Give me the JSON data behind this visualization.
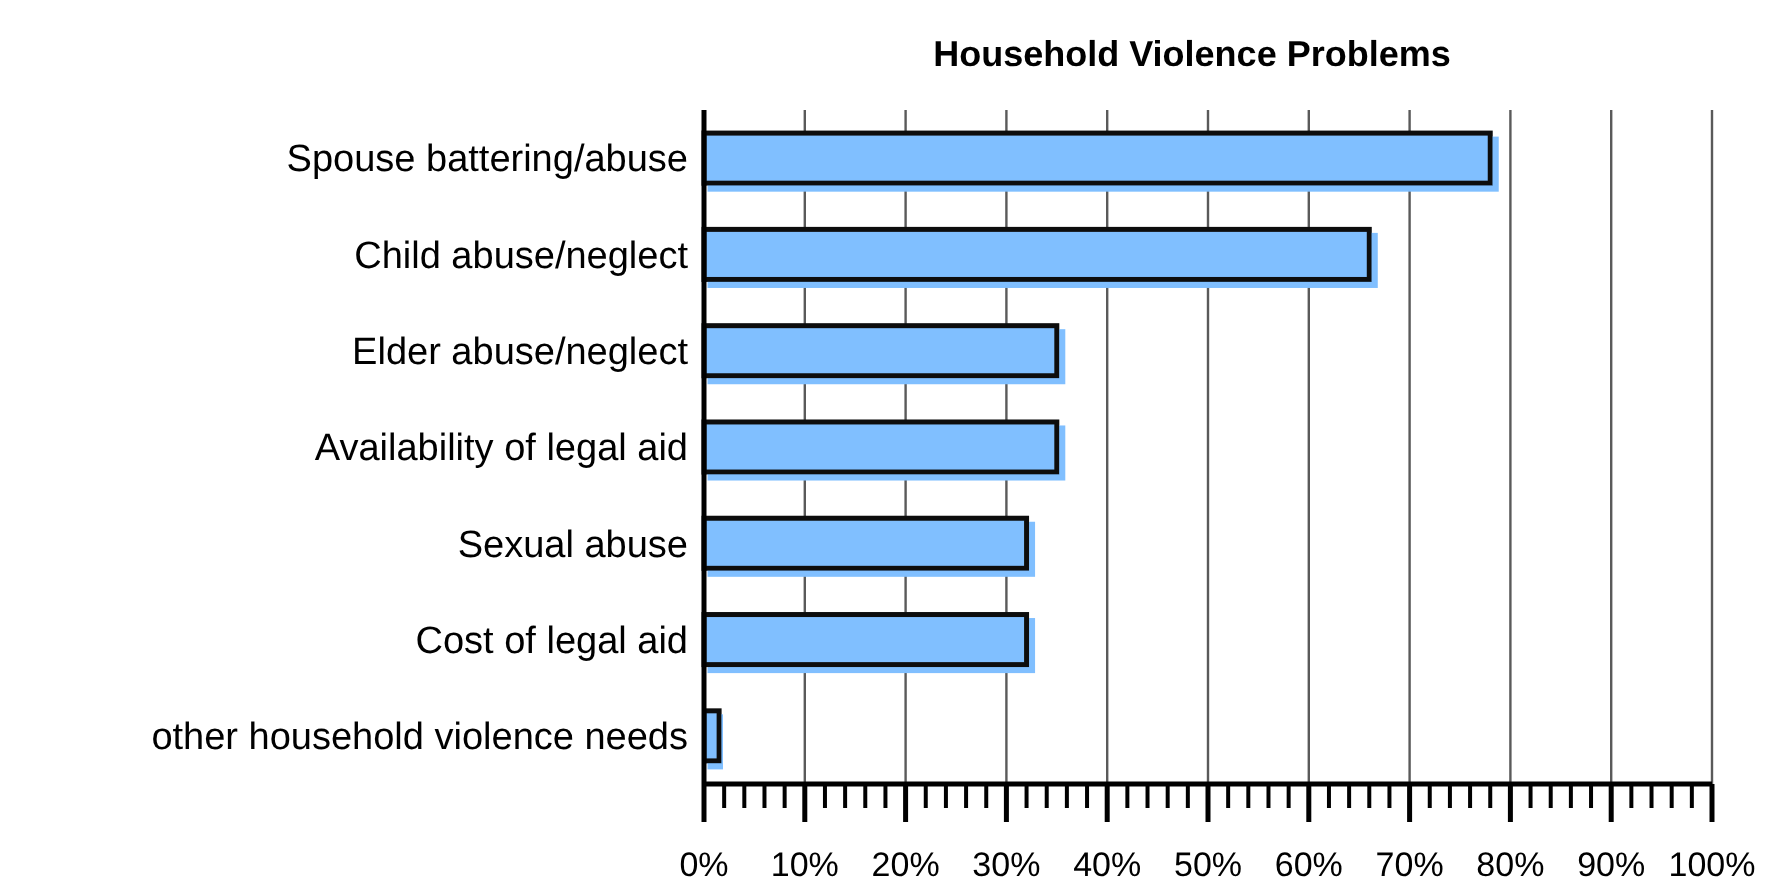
{
  "chart_data": {
    "type": "bar",
    "orientation": "horizontal",
    "title": "Household Violence Problems",
    "categories": [
      "Spouse battering/abuse",
      "Child abuse/neglect",
      "Elder abuse/neglect",
      "Availability of legal aid",
      "Sexual abuse",
      "Cost of legal aid",
      "other household violence needs"
    ],
    "values": [
      78,
      66,
      35,
      35,
      32,
      32,
      1.5
    ],
    "color": "#80bfff",
    "xlim": [
      0,
      100
    ],
    "xticks": [
      {
        "value": 0,
        "label": "0%"
      },
      {
        "value": 2,
        "label": null
      },
      {
        "value": 4,
        "label": null
      },
      {
        "value": 6,
        "label": null
      },
      {
        "value": 8,
        "label": null
      },
      {
        "value": 10,
        "label": "10%"
      },
      {
        "value": 12,
        "label": null
      },
      {
        "value": 14,
        "label": null
      },
      {
        "value": 16,
        "label": null
      },
      {
        "value": 18,
        "label": null
      },
      {
        "value": 20,
        "label": "20%"
      },
      {
        "value": 22,
        "label": null
      },
      {
        "value": 24,
        "label": null
      },
      {
        "value": 26,
        "label": null
      },
      {
        "value": 28,
        "label": null
      },
      {
        "value": 30,
        "label": "30%"
      },
      {
        "value": 32,
        "label": null
      },
      {
        "value": 34,
        "label": null
      },
      {
        "value": 36,
        "label": null
      },
      {
        "value": 38,
        "label": null
      },
      {
        "value": 40,
        "label": "40%"
      },
      {
        "value": 42,
        "label": null
      },
      {
        "value": 44,
        "label": null
      },
      {
        "value": 46,
        "label": null
      },
      {
        "value": 48,
        "label": null
      },
      {
        "value": 50,
        "label": "50%"
      },
      {
        "value": 52,
        "label": null
      },
      {
        "value": 54,
        "label": null
      },
      {
        "value": 56,
        "label": null
      },
      {
        "value": 58,
        "label": null
      },
      {
        "value": 60,
        "label": "60%"
      },
      {
        "value": 62,
        "label": null
      },
      {
        "value": 64,
        "label": null
      },
      {
        "value": 66,
        "label": null
      },
      {
        "value": 68,
        "label": null
      },
      {
        "value": 70,
        "label": "70%"
      },
      {
        "value": 72,
        "label": null
      },
      {
        "value": 74,
        "label": null
      },
      {
        "value": 76,
        "label": null
      },
      {
        "value": 78,
        "label": null
      },
      {
        "value": 80,
        "label": "80%"
      },
      {
        "value": 82,
        "label": null
      },
      {
        "value": 84,
        "label": null
      },
      {
        "value": 86,
        "label": null
      },
      {
        "value": 88,
        "label": null
      },
      {
        "value": 90,
        "label": "90%"
      },
      {
        "value": 92,
        "label": null
      },
      {
        "value": 94,
        "label": null
      },
      {
        "value": 96,
        "label": null
      },
      {
        "value": 98,
        "label": null
      },
      {
        "value": 100,
        "label": "100%"
      }
    ],
    "grid": "x"
  }
}
